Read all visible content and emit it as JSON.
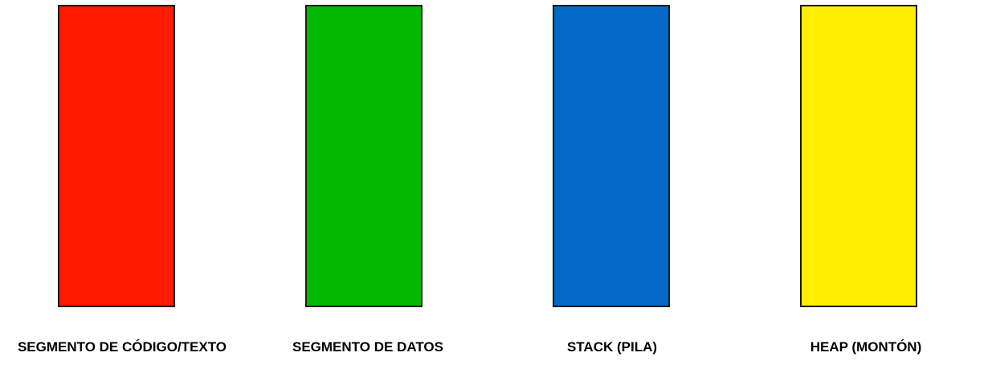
{
  "segments": [
    {
      "label": "SEGMENTO DE CÓDIGO/TEXTO",
      "color": "#ff1a00"
    },
    {
      "label": "SEGMENTO DE DATOS",
      "color": "#00b800"
    },
    {
      "label": "STACK (PILA)",
      "color": "#0369c8"
    },
    {
      "label": "HEAP (MONTÓN)",
      "color": "#ffee00"
    }
  ]
}
